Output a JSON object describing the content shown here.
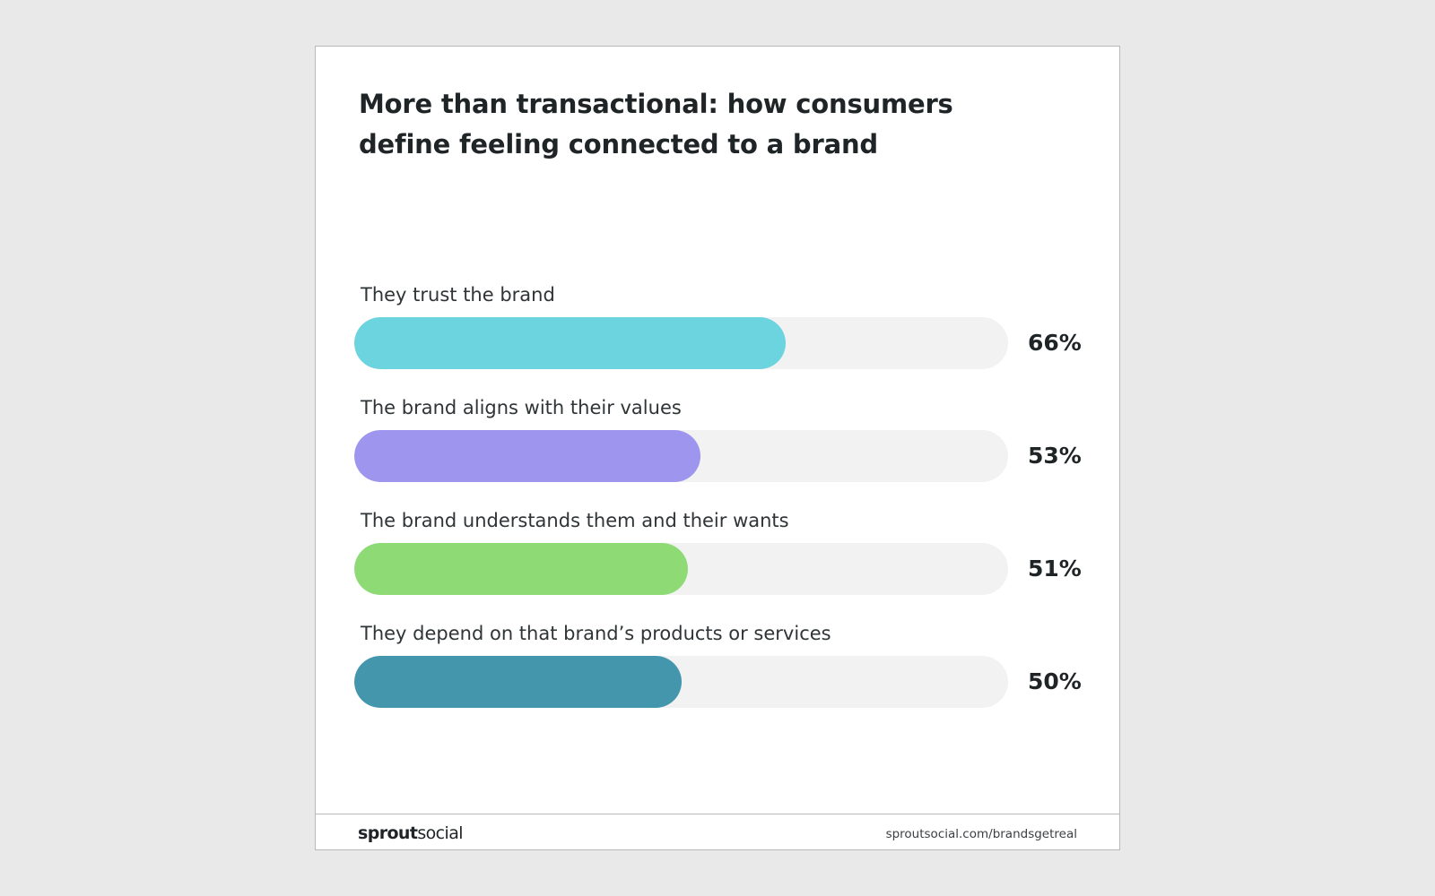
{
  "chart_data": {
    "type": "bar",
    "title": "More than transactional: how consumers define feeling connected to a brand",
    "categories": [
      "They trust the brand",
      "The brand aligns with their values",
      "The brand understands them and their wants",
      "They depend on that brand’s products or services"
    ],
    "values": [
      66,
      53,
      51,
      50
    ],
    "value_labels": [
      "66%",
      "53%",
      "51%",
      "50%"
    ],
    "unit": "%",
    "orientation": "horizontal",
    "ylim": [
      0,
      100
    ],
    "colors": [
      "#6cd4de",
      "#9e96ee",
      "#8edb76",
      "#4496ad"
    ],
    "track_color": "#f2f2f2",
    "grid": false,
    "legend": "none"
  },
  "footer": {
    "logo_bold": "sprout",
    "logo_regular": "social",
    "source": "sproutsocial.com/brandsgetreal"
  },
  "colors": {
    "background": "#e9e9e9",
    "card": "#ffffff",
    "text": "#1f2426"
  }
}
